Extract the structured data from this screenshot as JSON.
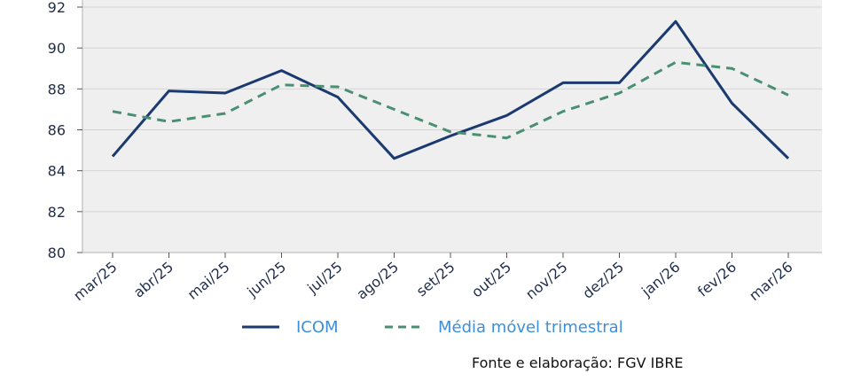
{
  "chart_data": {
    "type": "line",
    "categories": [
      "mar/25",
      "abr/25",
      "mai/25",
      "jun/25",
      "jul/25",
      "ago/25",
      "set/25",
      "out/25",
      "nov/25",
      "dez/25",
      "jan/26",
      "fev/26",
      "mar/26"
    ],
    "series": [
      {
        "name": "ICOM",
        "values": [
          84.7,
          87.9,
          87.8,
          88.9,
          87.6,
          84.6,
          85.7,
          86.7,
          88.3,
          88.3,
          91.3,
          87.3,
          84.6
        ],
        "color": "#1b3a6f",
        "style": "solid"
      },
      {
        "name": "Média móvel trimestral",
        "values": [
          86.9,
          86.4,
          86.8,
          88.2,
          88.1,
          87.0,
          85.9,
          85.6,
          86.9,
          87.8,
          89.3,
          89.0,
          87.7
        ],
        "color": "#4b8f72",
        "style": "dashed"
      }
    ],
    "ylim": [
      80,
      92
    ],
    "yticks": [
      80,
      82,
      84,
      86,
      88,
      90,
      92
    ],
    "grid": true,
    "legend_position": "bottom",
    "plot_background": "#efefef"
  },
  "source_text": "Fonte e elaboração: FGV IBRE"
}
